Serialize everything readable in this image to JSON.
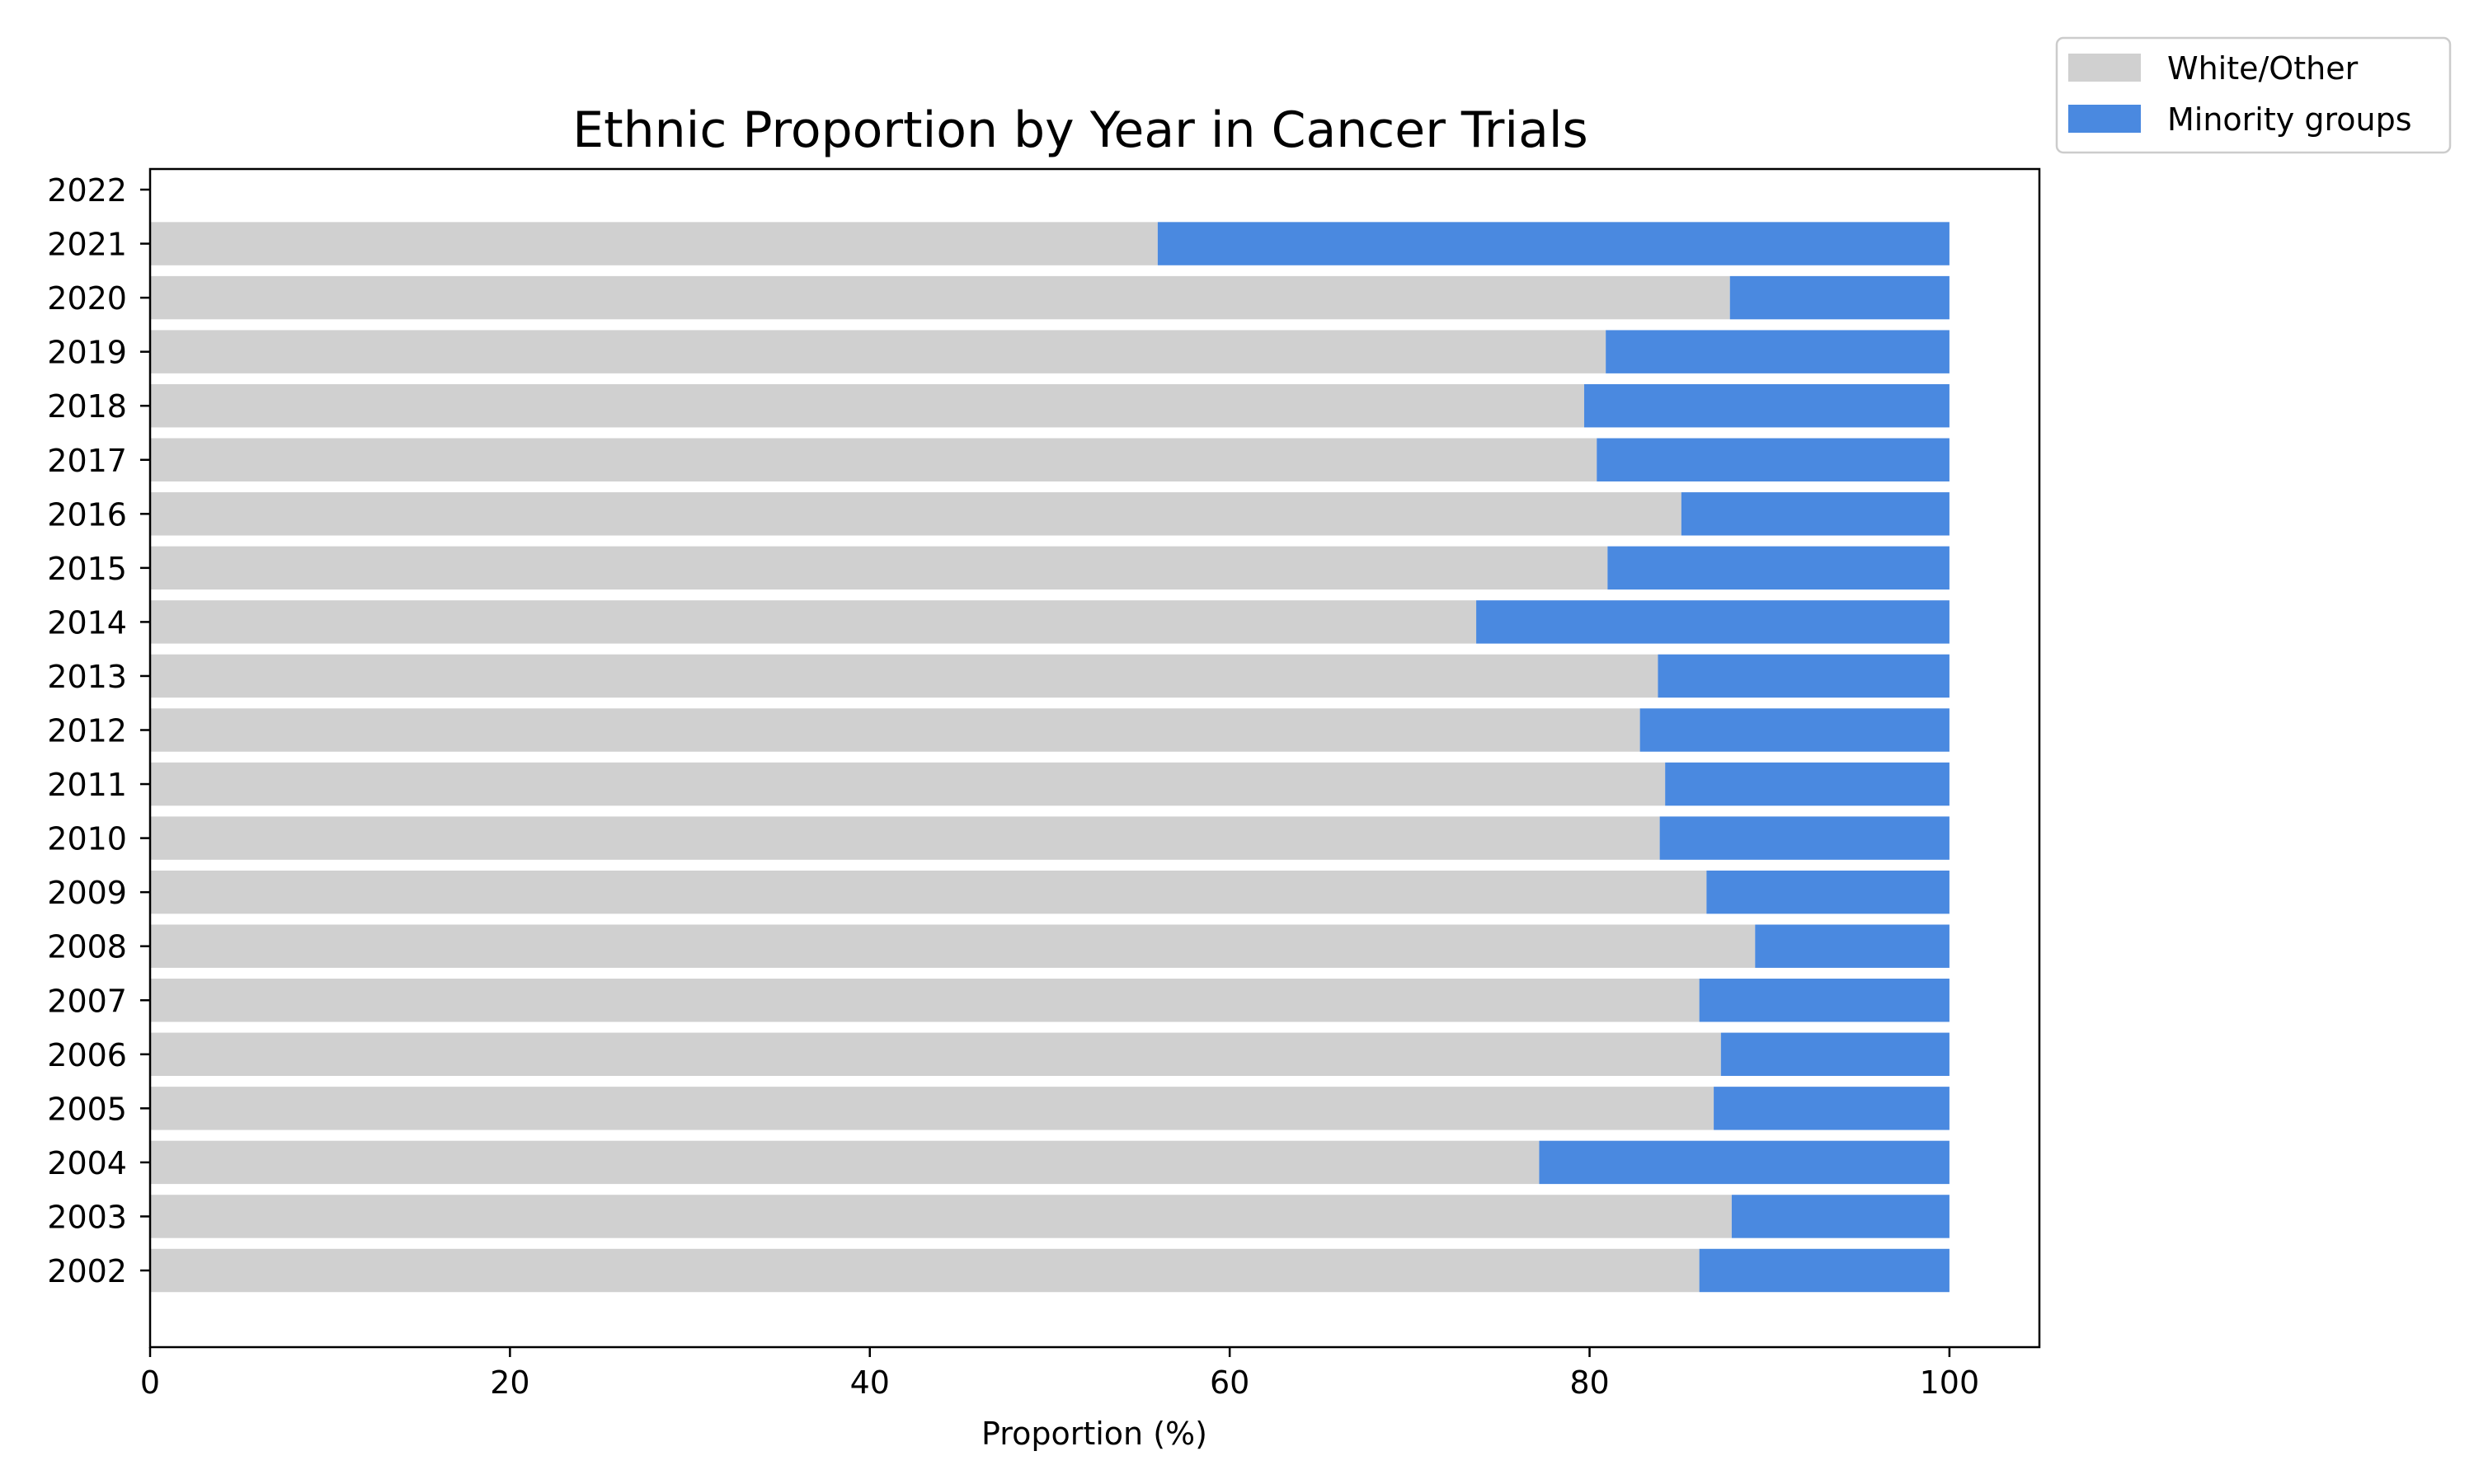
{
  "chart_data": {
    "type": "bar",
    "orientation": "horizontal",
    "stacked": true,
    "title": "Ethnic Proportion by Year in Cancer Trials",
    "xlabel": "Proportion (%)",
    "ylabel": "",
    "xlim": [
      0,
      105
    ],
    "xticks": [
      0,
      20,
      40,
      60,
      80,
      100
    ],
    "categories": [
      "2002",
      "2003",
      "2004",
      "2005",
      "2006",
      "2007",
      "2008",
      "2009",
      "2010",
      "2011",
      "2012",
      "2013",
      "2014",
      "2015",
      "2016",
      "2017",
      "2018",
      "2019",
      "2020",
      "2021",
      "2022"
    ],
    "series": [
      {
        "name": "White/Other",
        "color": "#d0d0d0",
        "values": [
          86.1,
          87.9,
          77.2,
          86.9,
          87.3,
          86.1,
          89.2,
          86.5,
          83.9,
          84.2,
          82.8,
          83.8,
          73.7,
          81.0,
          85.1,
          80.4,
          79.7,
          80.9,
          87.8,
          56.0,
          0
        ]
      },
      {
        "name": "Minority groups",
        "color": "#4a89e0",
        "values": [
          13.9,
          12.1,
          22.8,
          13.1,
          12.7,
          13.9,
          10.8,
          13.5,
          16.1,
          15.8,
          17.2,
          16.2,
          26.3,
          19.0,
          14.9,
          19.6,
          20.3,
          19.1,
          12.2,
          44.0,
          0
        ]
      }
    ],
    "legend_position": "outside-top-right",
    "grid": false
  }
}
